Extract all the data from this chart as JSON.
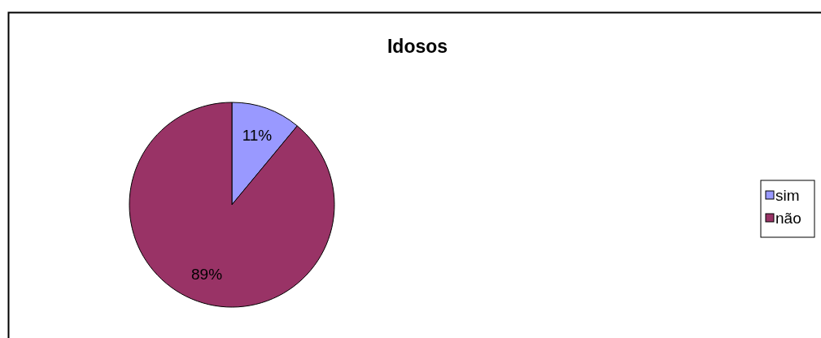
{
  "chart_data": {
    "type": "pie",
    "title": "Idosos",
    "categories": [
      "sim",
      "não"
    ],
    "values": [
      11,
      89
    ],
    "colors": [
      "#9999ff",
      "#993366"
    ],
    "value_labels": [
      "11%",
      "89%"
    ],
    "legend": "right"
  }
}
